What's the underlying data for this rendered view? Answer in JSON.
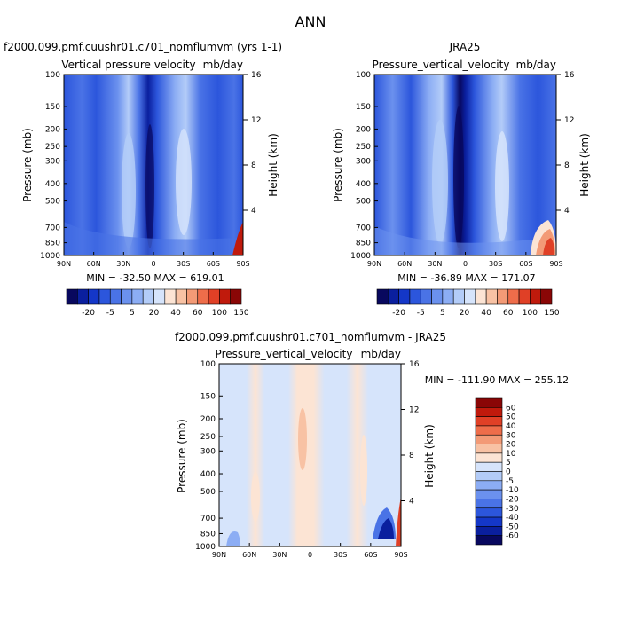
{
  "page": {
    "title": "ANN"
  },
  "colors": {
    "blues": [
      "#08085e",
      "#0a1f9e",
      "#1437c8",
      "#2c56dc",
      "#4a73e6",
      "#6b91ee",
      "#8cadf4",
      "#b3ccf8",
      "#d6e4fb"
    ],
    "reds": [
      "#fce4d4",
      "#f8c2a4",
      "#f39a76",
      "#ee6d4a",
      "#e04026",
      "#c01a0c",
      "#8a0606"
    ]
  },
  "chart_data": [
    {
      "type": "heatmap",
      "title_left": "f2000.099.pmf.cuushr01.c701_nomflumvm (yrs 1-1)",
      "title_center": "Vertical pressure velocity",
      "units": "mb/day",
      "ylabel": "Pressure (mb)",
      "y2label": "Height (km)",
      "yticks": [
        "100",
        "150",
        "200",
        "250",
        "300",
        "400",
        "500",
        "700",
        "850",
        "1000"
      ],
      "y2ticks": [
        "16",
        "12",
        "8",
        "4"
      ],
      "xticks": [
        "90N",
        "60N",
        "30N",
        "0",
        "30S",
        "60S",
        "90S"
      ],
      "stats": "MIN = -32.50   MAX = 619.01",
      "colorbar_labels": [
        "-20",
        "-5",
        "5",
        "20",
        "40",
        "60",
        "100",
        "150"
      ]
    },
    {
      "type": "heatmap",
      "title_left": "JRA25",
      "title_center": "Pressure_vertical_velocity",
      "units": "mb/day",
      "ylabel": "Pressure (mb)",
      "y2label": "Height (km)",
      "yticks": [
        "100",
        "150",
        "200",
        "250",
        "300",
        "400",
        "500",
        "700",
        "850",
        "1000"
      ],
      "y2ticks": [
        "16",
        "12",
        "8",
        "4"
      ],
      "xticks": [
        "90N",
        "60N",
        "30N",
        "0",
        "30S",
        "60S",
        "90S"
      ],
      "stats": "MIN = -36.89   MAX = 171.07",
      "colorbar_labels": [
        "-20",
        "-5",
        "5",
        "20",
        "40",
        "60",
        "100",
        "150"
      ]
    },
    {
      "type": "heatmap",
      "title_left": "f2000.099.pmf.cuushr01.c701_nomflumvm - JRA25",
      "title_center": "Pressure_vertical_velocity",
      "units": "mb/day",
      "ylabel": "Pressure (mb)",
      "y2label": "Height (km)",
      "yticks": [
        "100",
        "150",
        "200",
        "250",
        "300",
        "400",
        "500",
        "700",
        "850",
        "1000"
      ],
      "y2ticks": [
        "16",
        "12",
        "8",
        "4"
      ],
      "xticks": [
        "90N",
        "60N",
        "30N",
        "0",
        "30S",
        "60S",
        "90S"
      ],
      "stats": "MIN = -111.90   MAX = 255.12",
      "colorbar_labels": [
        "60",
        "50",
        "40",
        "30",
        "20",
        "10",
        "5",
        "0",
        "-5",
        "-10",
        "-20",
        "-30",
        "-40",
        "-50",
        "-60"
      ]
    }
  ]
}
